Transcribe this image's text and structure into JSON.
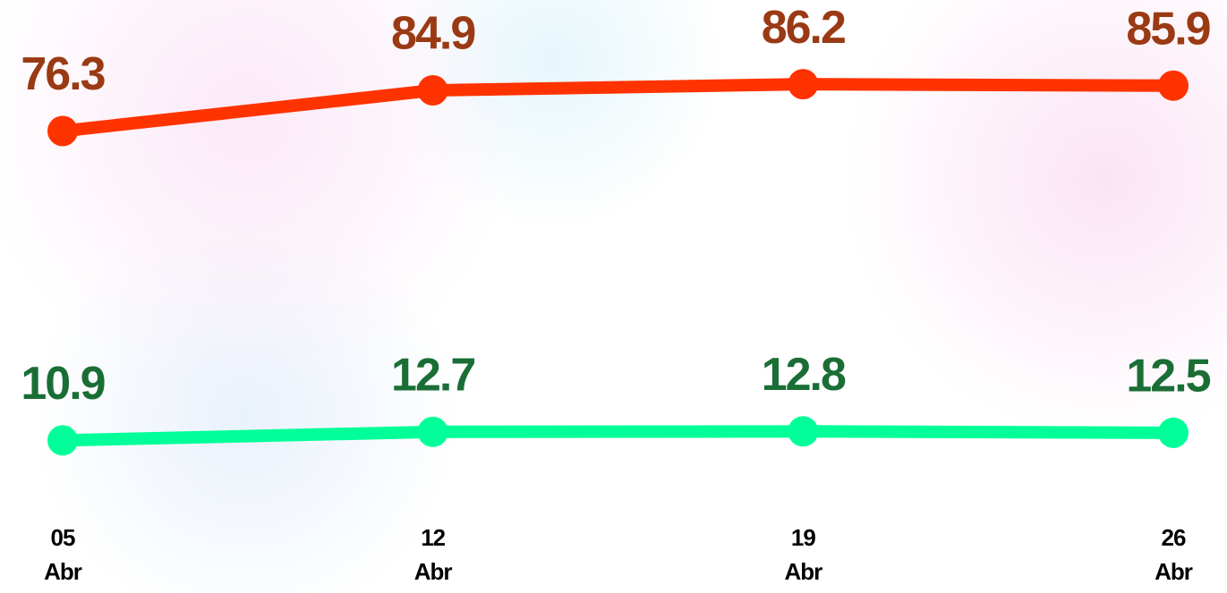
{
  "chart_data": {
    "type": "line",
    "categories": [
      "05\nAbr",
      "12\nAbr",
      "19\nAbr",
      "26\nAbr"
    ],
    "series": [
      {
        "color": "#ff3300",
        "label_color": "#9a3a14",
        "values": [
          76.3,
          84.9,
          86.2,
          85.9
        ]
      },
      {
        "color": "#00ff99",
        "label_color": "#1a6e35",
        "values": [
          10.9,
          12.7,
          12.8,
          12.5
        ]
      }
    ],
    "ylim": [
      0,
      104
    ],
    "grid": false
  }
}
